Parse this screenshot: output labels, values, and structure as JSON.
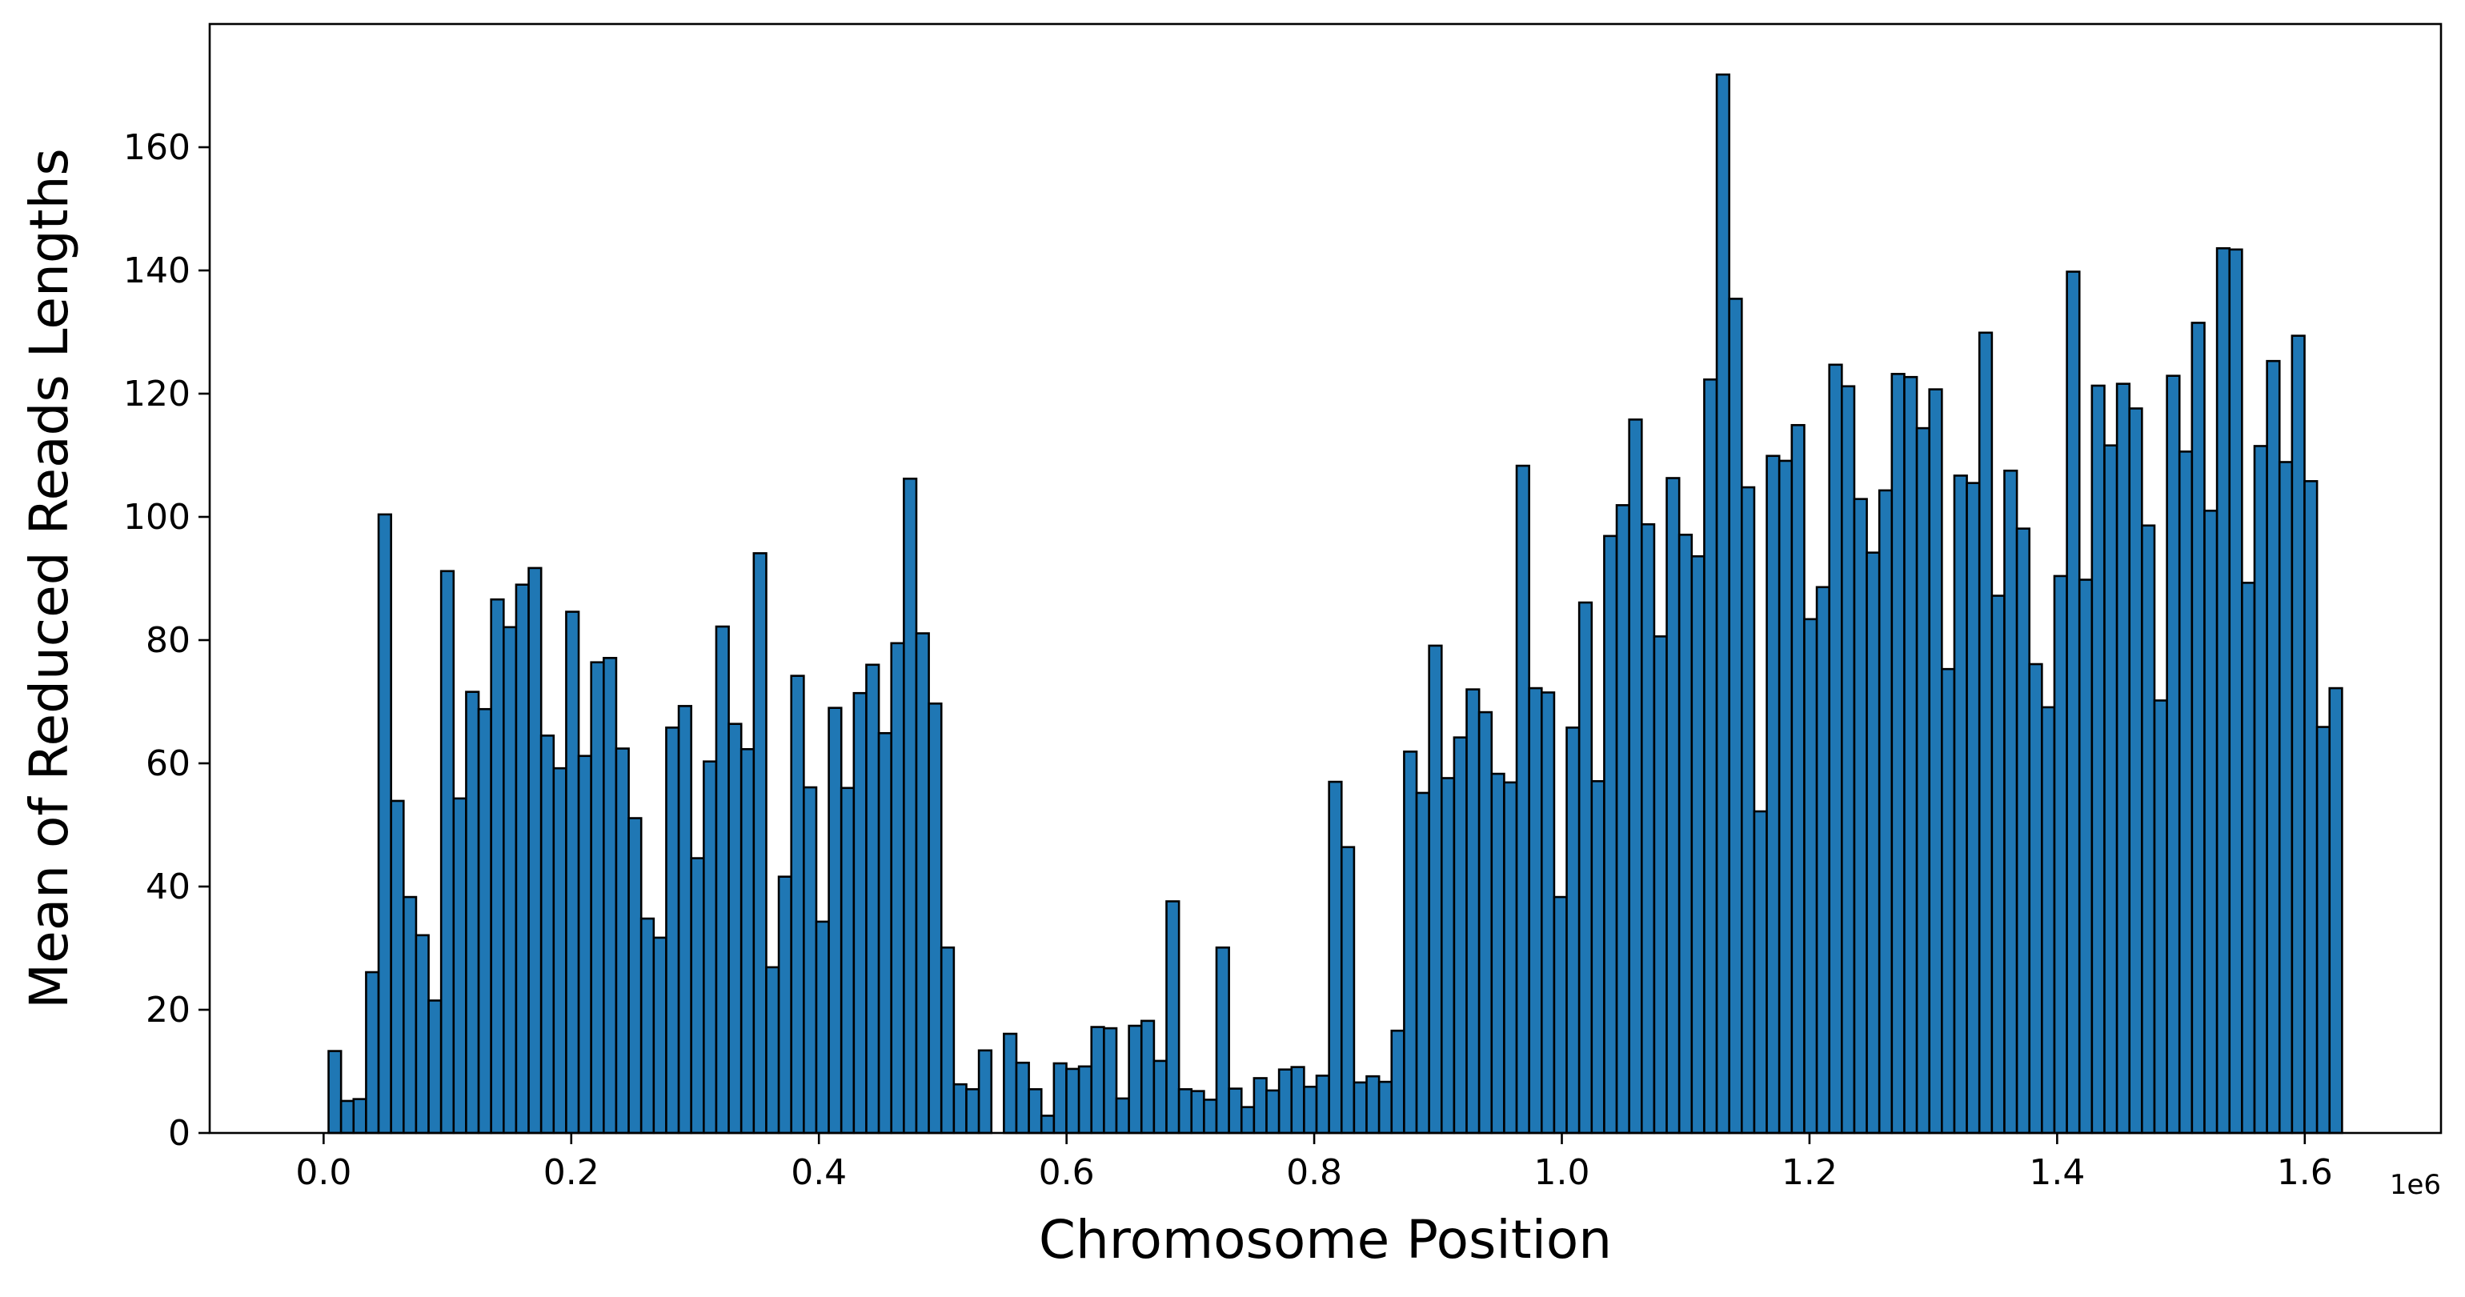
{
  "chart_data": {
    "type": "bar",
    "title": "",
    "xlabel": "Chromosome Position",
    "ylabel": "Mean of Reduced Reads Lengths",
    "x_offset_label": "1e6",
    "x_unit_multiplier": 1000000,
    "xlim": [
      -92000,
      1710000
    ],
    "ylim": [
      0,
      180
    ],
    "x_ticks": [
      0.0,
      0.2,
      0.4,
      0.6,
      0.8,
      1.0,
      1.2,
      1.4,
      1.6
    ],
    "x_tick_labels": [
      "0.0",
      "0.2",
      "0.4",
      "0.6",
      "0.8",
      "1.0",
      "1.2",
      "1.4",
      "1.6"
    ],
    "y_ticks": [
      0,
      20,
      40,
      60,
      80,
      100,
      120,
      140,
      160
    ],
    "y_tick_labels": [
      "0",
      "20",
      "40",
      "60",
      "80",
      "100",
      "120",
      "140",
      "160"
    ],
    "grid": false,
    "legend": "none",
    "bar_color": "#1f77b4",
    "edge_color": "#000000",
    "bin_start": 4000,
    "bin_width": 10100,
    "values": [
      13.3,
      5.2,
      5.5,
      26.1,
      100.4,
      53.9,
      38.3,
      32.1,
      21.5,
      91.2,
      54.3,
      71.6,
      68.8,
      86.6,
      82.1,
      89.0,
      91.7,
      64.5,
      59.2,
      84.6,
      61.2,
      76.4,
      77.1,
      62.4,
      51.1,
      34.8,
      31.7,
      65.8,
      69.3,
      44.6,
      60.3,
      82.2,
      66.4,
      62.3,
      94.1,
      26.9,
      41.6,
      74.2,
      56.1,
      34.3,
      69.0,
      56.0,
      71.4,
      76.0,
      64.9,
      79.5,
      106.2,
      81.1,
      69.7,
      30.1,
      7.9,
      7.1,
      13.4,
      0.0,
      16.1,
      11.4,
      7.1,
      2.8,
      11.3,
      10.4,
      10.8,
      17.2,
      17.0,
      5.6,
      17.4,
      18.2,
      11.7,
      37.6,
      7.1,
      6.8,
      5.4,
      30.1,
      7.2,
      4.2,
      8.9,
      6.9,
      10.3,
      10.7,
      7.5,
      9.3,
      57.0,
      46.4,
      8.2,
      9.2,
      8.3,
      16.6,
      61.9,
      55.2,
      79.1,
      57.6,
      64.2,
      72.0,
      68.3,
      58.3,
      56.9,
      108.3,
      72.2,
      71.5,
      38.3,
      65.8,
      86.1,
      57.1,
      96.9,
      101.9,
      115.8,
      98.8,
      80.6,
      106.3,
      97.1,
      93.6,
      122.3,
      171.8,
      135.4,
      104.8,
      52.2,
      109.9,
      109.1,
      114.9,
      83.4,
      88.6,
      124.7,
      121.2,
      102.9,
      94.2,
      104.3,
      123.2,
      122.7,
      114.4,
      120.7,
      75.3,
      106.7,
      105.5,
      129.9,
      87.2,
      107.5,
      98.1,
      76.1,
      69.1,
      90.4,
      139.8,
      89.8,
      121.3,
      111.6,
      121.6,
      117.6,
      98.6,
      70.2,
      122.9,
      110.6,
      131.5,
      101.0,
      143.6,
      143.4,
      89.3,
      111.5,
      125.3,
      108.9,
      129.4,
      105.8,
      65.9,
      72.2
    ]
  }
}
